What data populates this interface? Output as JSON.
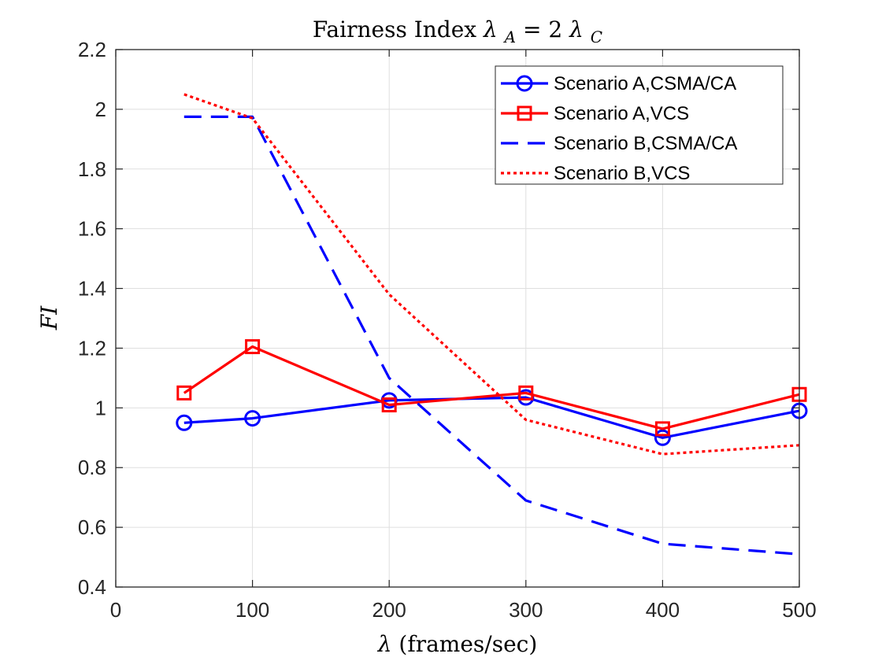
{
  "chart_data": {
    "type": "line",
    "title_text": "Fairness Index ",
    "title_math_lhs": "λ",
    "title_math_lhs_sub": "A",
    "title_math_eq": " = 2",
    "title_math_rhs": "λ",
    "title_math_rhs_sub": "C",
    "xlabel_symbol": "λ",
    "xlabel_text": " (frames/sec)",
    "ylabel": "FI",
    "xlim": [
      0,
      500
    ],
    "ylim": [
      0.4,
      2.2
    ],
    "xticks": [
      0,
      100,
      200,
      300,
      400,
      500
    ],
    "yticks": [
      0.4,
      0.6,
      0.8,
      1.0,
      1.2,
      1.4,
      1.6,
      1.8,
      2.0,
      2.2
    ],
    "xtick_labels": [
      "0",
      "100",
      "200",
      "300",
      "400",
      "500"
    ],
    "ytick_labels": [
      "0.4",
      "0.6",
      "0.8",
      "1",
      "1.2",
      "1.4",
      "1.6",
      "1.8",
      "2",
      "2.2"
    ],
    "grid": true,
    "legend_position": "top-right",
    "series": [
      {
        "name": "Scenario A,CSMA/CA",
        "color": "#0000ff",
        "line_style": "solid",
        "marker": "circle",
        "x": [
          50,
          100,
          200,
          300,
          400,
          500
        ],
        "y": [
          0.95,
          0.965,
          1.025,
          1.035,
          0.9,
          0.99
        ]
      },
      {
        "name": "Scenario A,VCS",
        "color": "#ff0000",
        "line_style": "solid",
        "marker": "square",
        "x": [
          50,
          100,
          200,
          300,
          400,
          500
        ],
        "y": [
          1.05,
          1.205,
          1.01,
          1.05,
          0.93,
          1.045
        ]
      },
      {
        "name": "Scenario B,CSMA/CA",
        "color": "#0000ff",
        "line_style": "dashed",
        "marker": "none",
        "x": [
          50,
          100,
          200,
          300,
          400,
          500
        ],
        "y": [
          1.975,
          1.975,
          1.1,
          0.69,
          0.545,
          0.51
        ]
      },
      {
        "name": "Scenario B,VCS",
        "color": "#ff0000",
        "line_style": "dotted",
        "marker": "none",
        "x": [
          50,
          100,
          200,
          300,
          400,
          500
        ],
        "y": [
          2.05,
          1.97,
          1.38,
          0.96,
          0.845,
          0.875
        ]
      }
    ]
  }
}
